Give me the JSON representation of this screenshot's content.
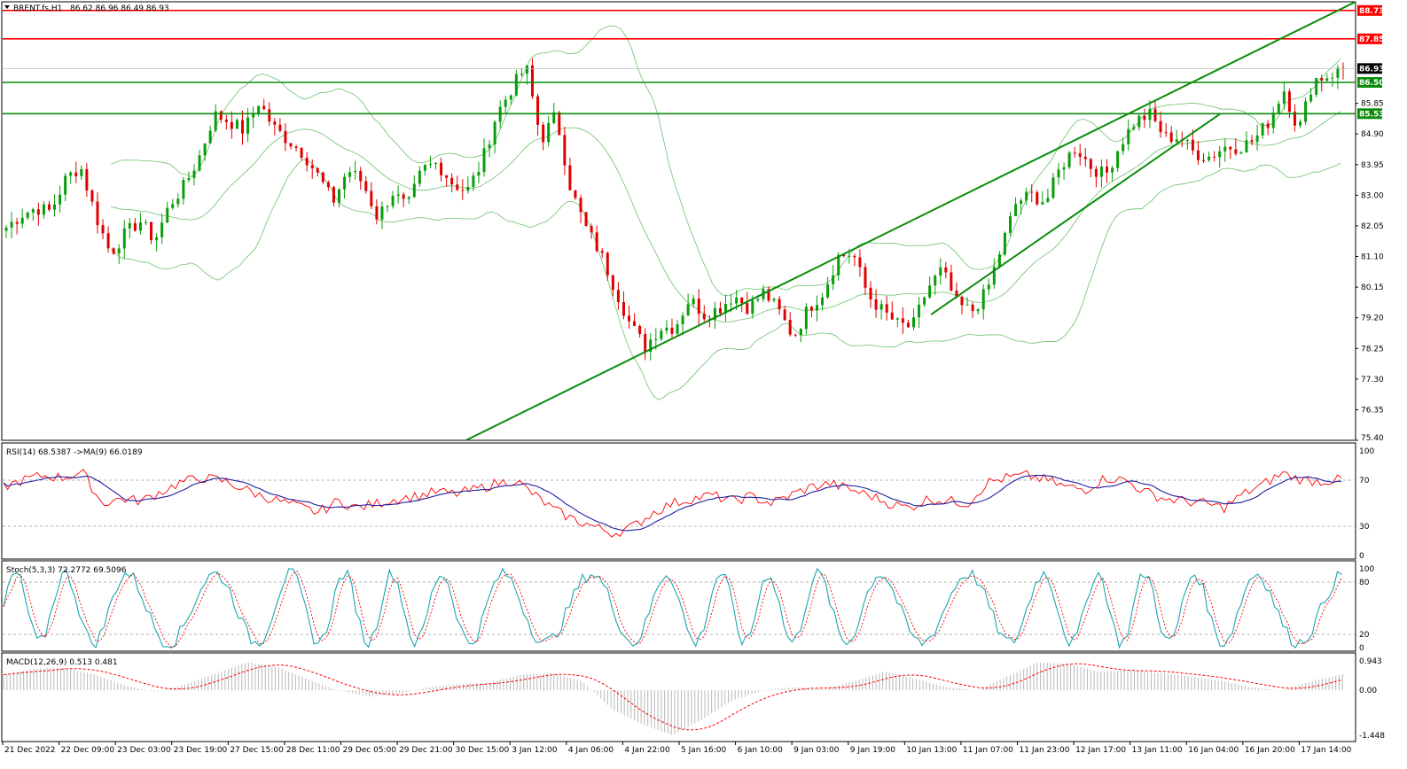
{
  "header": {
    "title": "BRENT.fs,H1",
    "ohlc": "86.62 86.96 86.49 86.93"
  },
  "colors": {
    "bull": "#0a9d0a",
    "bear": "#e00000",
    "resistance": "#ff0000",
    "support": "#0a8c0a",
    "channel": "#0a8c0a",
    "bollinger": "#6dc06d",
    "rsi": "#ff0000",
    "rsi_ma": "#1f1fa0",
    "stoch_main": "#1aa6b0",
    "stoch_signal": "#ff0000",
    "macd_hist": "#b8b8b8",
    "macd_signal": "#ff0000"
  },
  "chart_data": [
    {
      "type": "candlestick",
      "symbol": "BRENT.fs",
      "timeframe": "H1",
      "ylim": [
        75.4,
        89.0
      ],
      "y_ticks": [
        "88.73",
        "87.85",
        "86.93",
        "86.50",
        "85.85",
        "85.53",
        "84.90",
        "83.95",
        "83.00",
        "82.05",
        "81.10",
        "80.15",
        "79.20",
        "78.25",
        "77.30",
        "76.35",
        "75.40"
      ],
      "x_ticks": [
        "21 Dec 2022",
        "22 Dec 09:00",
        "23 Dec 03:00",
        "23 Dec 19:00",
        "27 Dec 15:00",
        "28 Dec 11:00",
        "29 Dec 05:00",
        "29 Dec 21:00",
        "30 Dec 15:00",
        "3 Jan 12:00",
        "4 Jan 06:00",
        "4 Jan 22:00",
        "5 Jan 16:00",
        "6 Jan 10:00",
        "9 Jan 03:00",
        "9 Jan 19:00",
        "10 Jan 13:00",
        "11 Jan 07:00",
        "11 Jan 23:00",
        "12 Jan 17:00",
        "13 Jan 11:00",
        "16 Jan 04:00",
        "16 Jan 20:00",
        "17 Jan 14:00"
      ],
      "close_path": [
        82.0,
        82.4,
        82.6,
        82.5,
        83.5,
        83.9,
        82.4,
        81.2,
        81.8,
        82.2,
        81.6,
        82.7,
        83.3,
        84.2,
        85.5,
        85.3,
        85.0,
        85.9,
        85.1,
        84.7,
        84.3,
        83.6,
        82.8,
        83.8,
        83.4,
        82.3,
        83.1,
        82.6,
        83.8,
        84.0,
        83.4,
        83.1,
        84.0,
        85.5,
        86.3,
        87.0,
        84.7,
        85.5,
        83.2,
        82.0,
        81.2,
        80.1,
        79.0,
        78.3,
        78.9,
        78.9,
        79.8,
        79.3,
        79.5,
        79.9,
        79.5,
        80.0,
        79.4,
        78.6,
        79.5,
        80.0,
        81.1,
        81.2,
        79.9,
        79.4,
        79.0,
        78.9,
        80.1,
        80.7,
        79.6,
        79.4,
        80.0,
        81.4,
        82.8,
        83.0,
        82.8,
        83.9,
        84.5,
        83.9,
        83.6,
        84.6,
        85.3,
        85.5,
        84.8,
        84.8,
        84.3,
        84.2,
        84.5,
        84.5,
        84.7,
        85.3,
        86.3,
        85.0,
        86.6,
        86.7,
        86.93
      ],
      "horizontal_levels": [
        {
          "label": "88.73",
          "value": 88.73,
          "kind": "resistance"
        },
        {
          "label": "87.85",
          "value": 87.85,
          "kind": "resistance"
        },
        {
          "label": "86.50",
          "value": 86.5,
          "kind": "support"
        },
        {
          "label": "85.53",
          "value": 85.53,
          "kind": "support"
        }
      ],
      "current_price": {
        "label": "86.93",
        "value": 86.93
      },
      "channel": {
        "upper": [
          [
            0.342,
            75.4
          ],
          [
            1.0,
            89.0
          ]
        ],
        "lower": [
          [
            0.686,
            79.3
          ],
          [
            0.9,
            85.53
          ]
        ]
      }
    },
    {
      "type": "line",
      "name": "RSI",
      "label": "RSI(14) 68.5387  ->MA(9) 66.0189",
      "ylim": [
        0,
        100
      ],
      "y_ticks": [
        "100",
        "70",
        "30",
        "0"
      ],
      "levels": [
        70,
        30
      ],
      "path": [
        62,
        68,
        72,
        70,
        75,
        48,
        52,
        50,
        58,
        66,
        70,
        68,
        62,
        55,
        50,
        45,
        40,
        50,
        44,
        48,
        52,
        54,
        58,
        56,
        60,
        65,
        68,
        55,
        42,
        34,
        28,
        22,
        28,
        40,
        48,
        52,
        55,
        50,
        54,
        48,
        55,
        62,
        65,
        60,
        55,
        48,
        44,
        52,
        50,
        48,
        66,
        70,
        72,
        68,
        62,
        60,
        70,
        68,
        58,
        52,
        50,
        48,
        44,
        56,
        64,
        74,
        68,
        67,
        68.5
      ]
    },
    {
      "type": "line",
      "name": "Stochastic",
      "label": "Stoch(5,3,3) 72.2772 69.5096",
      "ylim": [
        0,
        100
      ],
      "y_ticks": [
        "100",
        "80",
        "20",
        "0"
      ],
      "levels": [
        80,
        20
      ]
    },
    {
      "type": "bar",
      "name": "MACD",
      "label": "MACD(12,26,9) 0.513 0.481",
      "ylim": [
        -1.448,
        0.943
      ],
      "y_ticks": [
        "0.943",
        "0.00",
        "-1.448"
      ],
      "path": [
        0.5,
        0.7,
        0.72,
        0.5,
        0.15,
        -0.05,
        0.2,
        0.55,
        0.9,
        0.75,
        0.35,
        0.0,
        -0.2,
        -0.1,
        0.1,
        0.2,
        0.25,
        0.5,
        0.55,
        0.3,
        -0.6,
        -1.1,
        -1.45,
        -0.9,
        -0.3,
        0.0,
        0.1,
        0.05,
        0.3,
        0.6,
        0.35,
        0.1,
        0.0,
        0.45,
        0.9,
        0.85,
        0.6,
        0.65,
        0.55,
        0.45,
        0.3,
        0.1,
        0.0,
        0.3,
        0.51
      ]
    }
  ]
}
